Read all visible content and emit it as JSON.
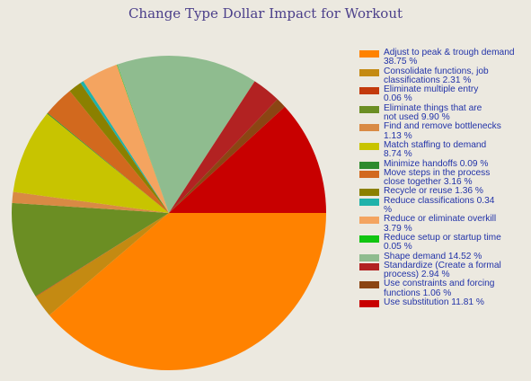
{
  "chart_data": {
    "type": "pie",
    "title": "Change Type Dollar Impact for Workout",
    "legend_position": "right",
    "slices": [
      {
        "label": "Adjust to peak & trough demand",
        "value": 38.75,
        "value_text": "38.75 %",
        "color": "#ff8200"
      },
      {
        "label": "Consolidate functions, job classifications",
        "value": 2.31,
        "value_text": "2.31 %",
        "color": "#c48a12"
      },
      {
        "label": "Eliminate multiple entry",
        "value": 0.06,
        "value_text": "0.06 %",
        "color": "#c33a0c"
      },
      {
        "label": "Eliminate things that are not used",
        "value": 9.9,
        "value_text": "9.90 %",
        "color": "#6b8e23"
      },
      {
        "label": "Find and remove bottlenecks",
        "value": 1.13,
        "value_text": "1.13 %",
        "color": "#d98a44"
      },
      {
        "label": "Match staffing to demand",
        "value": 8.74,
        "value_text": "8.74 %",
        "color": "#c8c400"
      },
      {
        "label": "Minimize handoffs",
        "value": 0.09,
        "value_text": "0.09 %",
        "color": "#2e8b2e"
      },
      {
        "label": "Move steps in the process close together",
        "value": 3.16,
        "value_text": "3.16 %",
        "color": "#d2691e"
      },
      {
        "label": "Recycle or reuse",
        "value": 1.36,
        "value_text": "1.36 %",
        "color": "#8b8000"
      },
      {
        "label": "Reduce classifications",
        "value": 0.34,
        "value_text": "0.34 %",
        "color": "#20b2aa"
      },
      {
        "label": "Reduce or eliminate overkill",
        "value": 3.79,
        "value_text": "3.79 %",
        "color": "#f4a460"
      },
      {
        "label": "Reduce setup or startup time",
        "value": 0.05,
        "value_text": "0.05 %",
        "color": "#11c511"
      },
      {
        "label": "Shape demand",
        "value": 14.52,
        "value_text": "14.52 %",
        "color": "#8fbc8f"
      },
      {
        "label": "Standardize (Create a formal process)",
        "value": 2.94,
        "value_text": "2.94 %",
        "color": "#b22222"
      },
      {
        "label": "Use constraints and forcing functions",
        "value": 1.06,
        "value_text": "1.06 %",
        "color": "#8b4513"
      },
      {
        "label": "Use substitution",
        "value": 11.81,
        "value_text": "11.81 %",
        "color": "#c80000"
      }
    ]
  },
  "legend_lines": [
    [
      "Adjust to peak & trough demand",
      "38.75 %"
    ],
    [
      "Consolidate functions, job",
      "classifications 2.31 %"
    ],
    [
      "Eliminate multiple entry",
      "0.06 %"
    ],
    [
      "Eliminate things that are",
      "not used 9.90 %"
    ],
    [
      "Find and remove bottlenecks",
      "1.13 %"
    ],
    [
      "Match staffing to demand",
      "8.74 %"
    ],
    [
      "Minimize handoffs 0.09 %"
    ],
    [
      "Move steps in the process",
      "close together 3.16 %"
    ],
    [
      "Recycle or reuse 1.36 %"
    ],
    [
      "Reduce classifications 0.34",
      "%"
    ],
    [
      "Reduce or eliminate overkill",
      "3.79 %"
    ],
    [
      "Reduce setup or startup time",
      "0.05 %"
    ],
    [
      "Shape demand 14.52 %"
    ],
    [
      "Standardize (Create a formal",
      "process) 2.94 %"
    ],
    [
      "Use constraints and forcing",
      "functions 1.06 %"
    ],
    [
      "Use substitution 11.81 %"
    ]
  ]
}
